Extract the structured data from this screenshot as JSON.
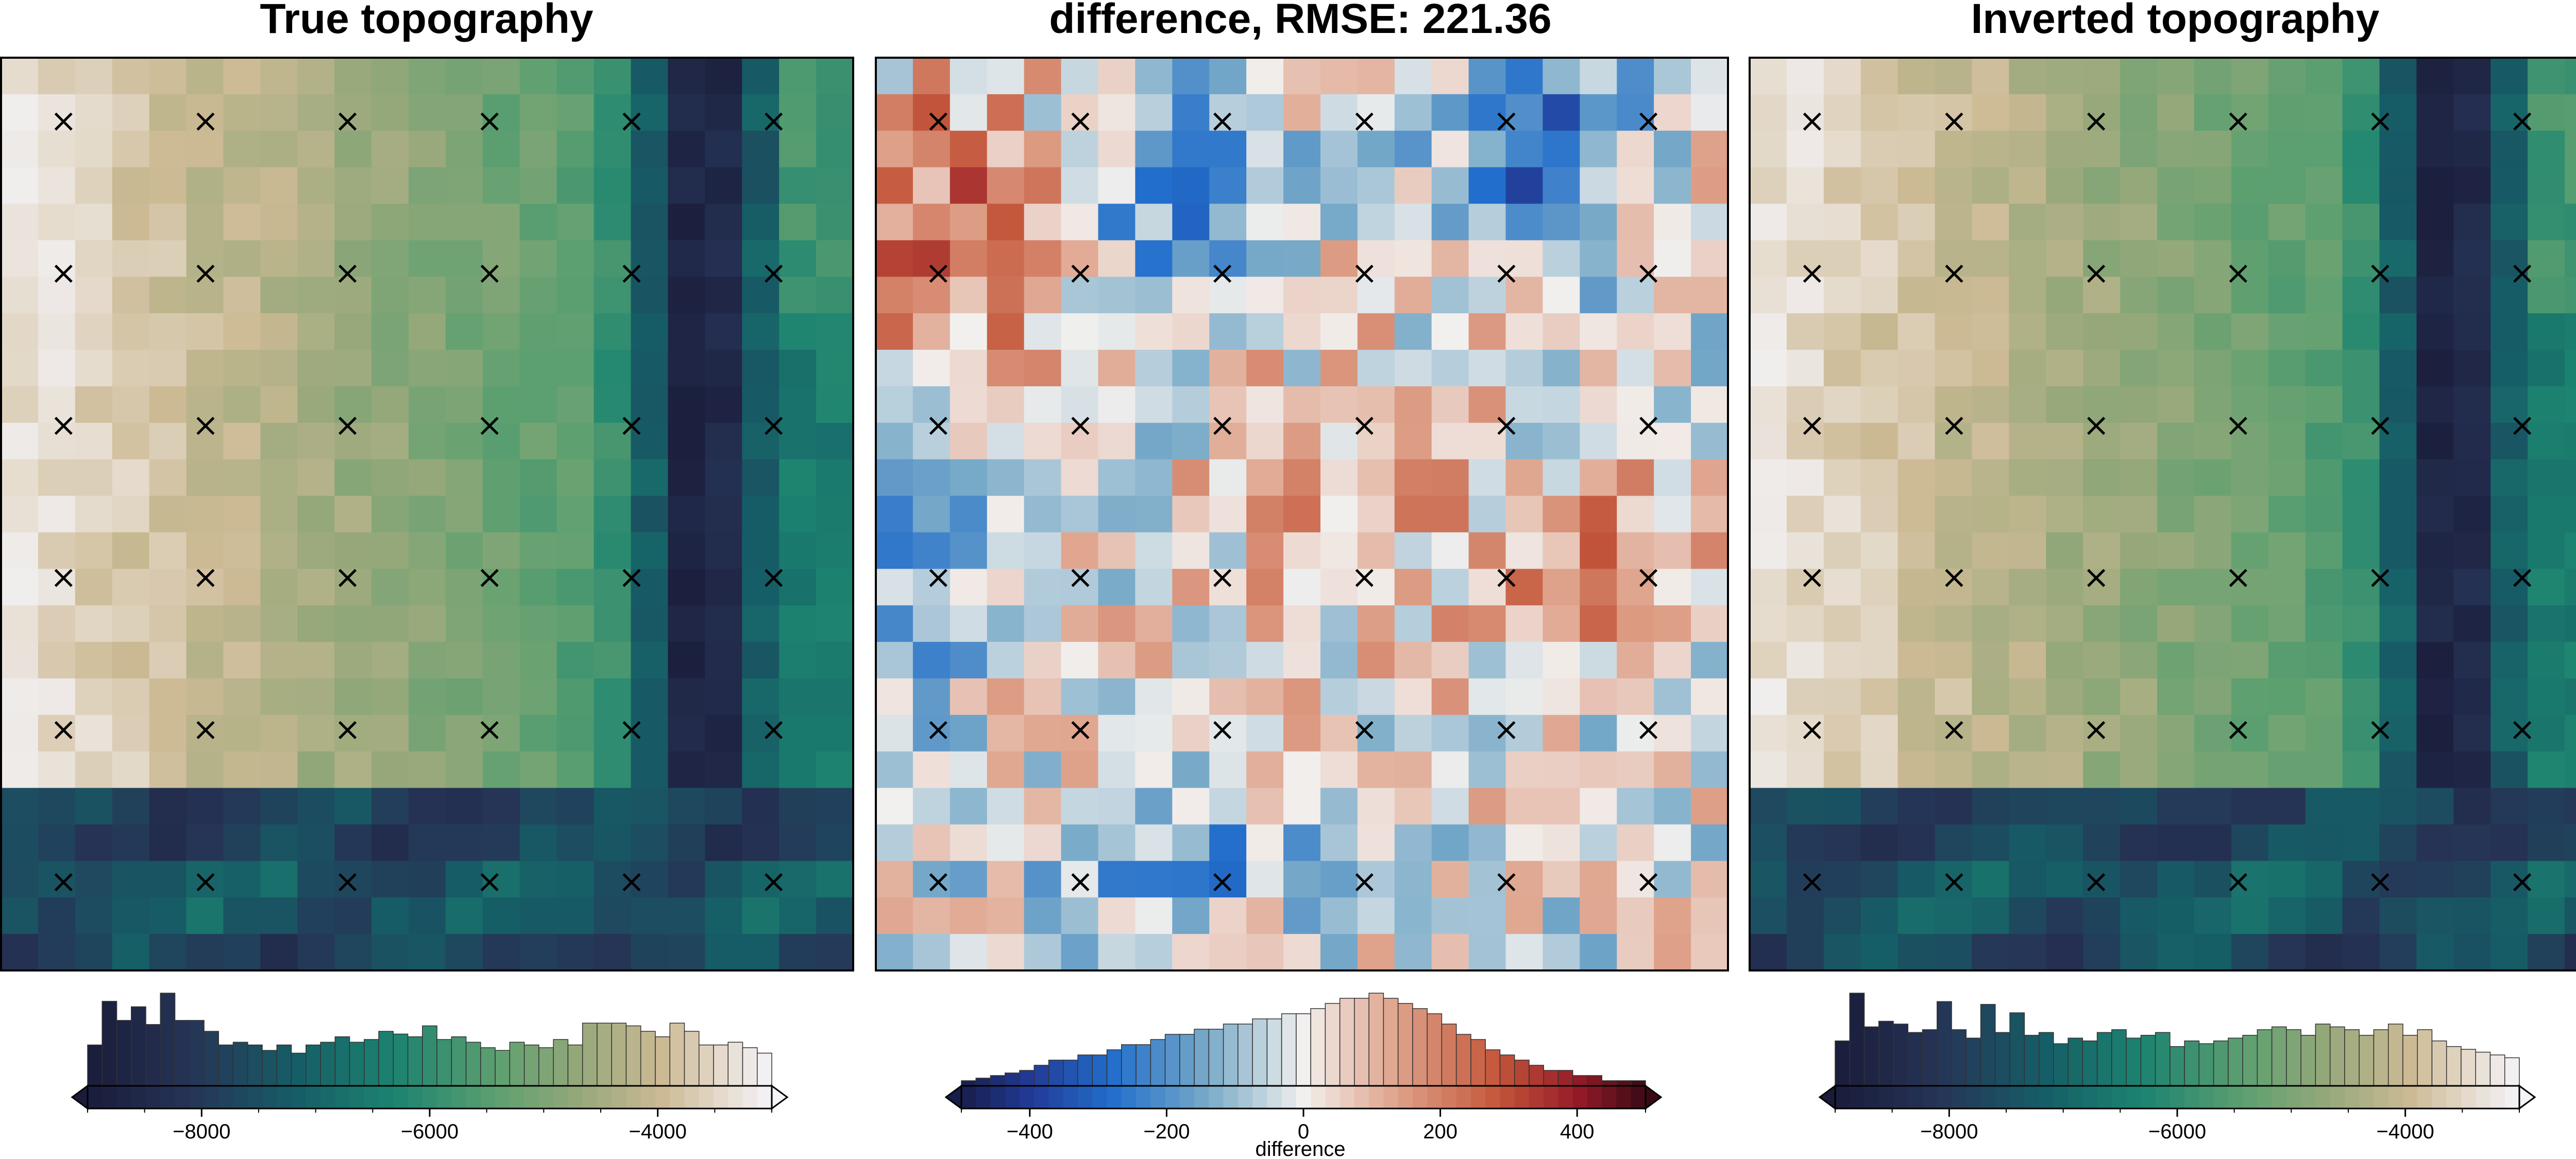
{
  "chart_data": [
    {
      "type": "heatmap",
      "title": "True topography",
      "colormap": "topography",
      "grid": {
        "rows": 25,
        "cols": 23
      },
      "value_range": [
        -9000,
        -3000
      ],
      "histogram": [
        30,
        62,
        48,
        58,
        45,
        68,
        48,
        48,
        40,
        30,
        32,
        30,
        26,
        30,
        24,
        30,
        32,
        36,
        32,
        34,
        40,
        38,
        36,
        44,
        34,
        36,
        32,
        28,
        26,
        32,
        30,
        28,
        34,
        30,
        46,
        46,
        46,
        44,
        40,
        36,
        46,
        40,
        30,
        30,
        32,
        28,
        24
      ],
      "colorbar": {
        "ticks": [
          -8000,
          -6000,
          -4000
        ],
        "tick_labels": [
          "−8000",
          "−6000",
          "−4000"
        ],
        "xlabel": ""
      }
    },
    {
      "type": "heatmap",
      "title": "difference, RMSE: 221.36",
      "colormap": "balance",
      "grid": {
        "rows": 25,
        "cols": 23
      },
      "value_range": [
        -500,
        500
      ],
      "histogram": [
        2,
        3,
        4,
        5,
        6,
        8,
        10,
        10,
        12,
        12,
        14,
        16,
        16,
        18,
        20,
        20,
        22,
        22,
        24,
        24,
        26,
        26,
        28,
        28,
        30,
        32,
        34,
        34,
        36,
        34,
        32,
        30,
        28,
        24,
        20,
        18,
        14,
        12,
        10,
        8,
        6,
        6,
        4,
        4,
        2,
        2,
        2
      ],
      "colorbar": {
        "ticks": [
          -400,
          -200,
          0,
          200,
          400
        ],
        "tick_labels": [
          "−400",
          "−200",
          "0",
          "200",
          "400"
        ],
        "xlabel": "difference"
      }
    },
    {
      "type": "heatmap",
      "title": "Inverted topography",
      "colormap": "topography",
      "grid": {
        "rows": 25,
        "cols": 23
      },
      "value_range": [
        -9000,
        -3000
      ],
      "histogram": [
        32,
        66,
        42,
        46,
        44,
        38,
        40,
        60,
        40,
        34,
        58,
        38,
        52,
        36,
        38,
        30,
        34,
        32,
        38,
        40,
        34,
        36,
        38,
        28,
        32,
        30,
        32,
        34,
        36,
        40,
        42,
        40,
        36,
        44,
        42,
        40,
        36,
        40,
        44,
        36,
        40,
        32,
        28,
        26,
        24,
        22,
        20
      ],
      "colorbar": {
        "ticks": [
          -8000,
          -6000,
          -4000
        ],
        "tick_labels": [
          "−8000",
          "−6000",
          "−4000"
        ],
        "xlabel": ""
      }
    }
  ],
  "markers": {
    "symbol": "×",
    "rows": 6,
    "cols": 6
  }
}
